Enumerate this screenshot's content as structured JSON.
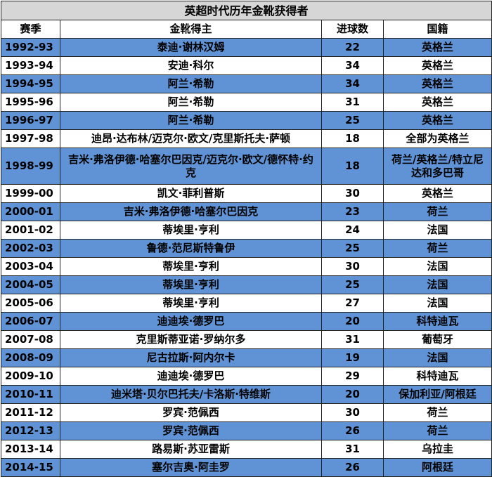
{
  "table": {
    "title": "英超时代历年金靴获得者",
    "headers": [
      "赛季",
      "金靴得主",
      "进球数",
      "国籍"
    ],
    "rows": [
      [
        "1992-93",
        "泰迪·谢林汉姆",
        22,
        "英格兰"
      ],
      [
        "1993-94",
        "安迪·科尔",
        34,
        "英格兰"
      ],
      [
        "1994-95",
        "阿兰·希勒",
        34,
        "英格兰"
      ],
      [
        "1995-96",
        "阿兰·希勒",
        31,
        "英格兰"
      ],
      [
        "1996-97",
        "阿兰·希勒",
        25,
        "英格兰"
      ],
      [
        "1997-98",
        "迪昂·达布林/迈克尔·欧文/克里斯托夫·萨顿",
        18,
        "全部为英格兰"
      ],
      [
        "1998-99",
        "吉米·弗洛伊德·哈塞尔巴因克/迈克尔·欧文/德怀特·约克",
        18,
        "荷兰/英格兰/特立尼达和多巴哥"
      ],
      [
        "1999-00",
        "凯文·菲利普斯",
        30,
        "英格兰"
      ],
      [
        "2000-01",
        "吉米·弗洛伊德·哈塞尔巴因克",
        23,
        "荷兰"
      ],
      [
        "2001-02",
        "蒂埃里·亨利",
        24,
        "法国"
      ],
      [
        "2002-03",
        "鲁德·范尼斯特鲁伊",
        25,
        "荷兰"
      ],
      [
        "2003-04",
        "蒂埃里·亨利",
        30,
        "法国"
      ],
      [
        "2004-05",
        "蒂埃里·亨利",
        25,
        "法国"
      ],
      [
        "2005-06",
        "蒂埃里·亨利",
        27,
        "法国"
      ],
      [
        "2006-07",
        "迪迪埃·德罗巴",
        20,
        "科特迪瓦"
      ],
      [
        "2007-08",
        "克里斯蒂亚诺·罗纳尔多",
        31,
        "葡萄牙"
      ],
      [
        "2008-09",
        "尼古拉斯·阿内尔卡",
        19,
        "法国"
      ],
      [
        "2009-10",
        "迪迪埃·德罗巴",
        29,
        "科特迪瓦"
      ],
      [
        "2010-11",
        "迪米塔·贝尔巴托夫/卡洛斯·特维斯",
        20,
        "保加利亚/阿根廷"
      ],
      [
        "2011-12",
        "罗宾·范佩西",
        30,
        "荷兰"
      ],
      [
        "2012-13",
        "罗宾·范佩西",
        26,
        "荷兰"
      ],
      [
        "2013-14",
        "路易斯·苏亚雷斯",
        31,
        "乌拉圭"
      ],
      [
        "2014-15",
        "塞尔吉奥·阿圭罗",
        26,
        "阿根廷"
      ]
    ]
  }
}
